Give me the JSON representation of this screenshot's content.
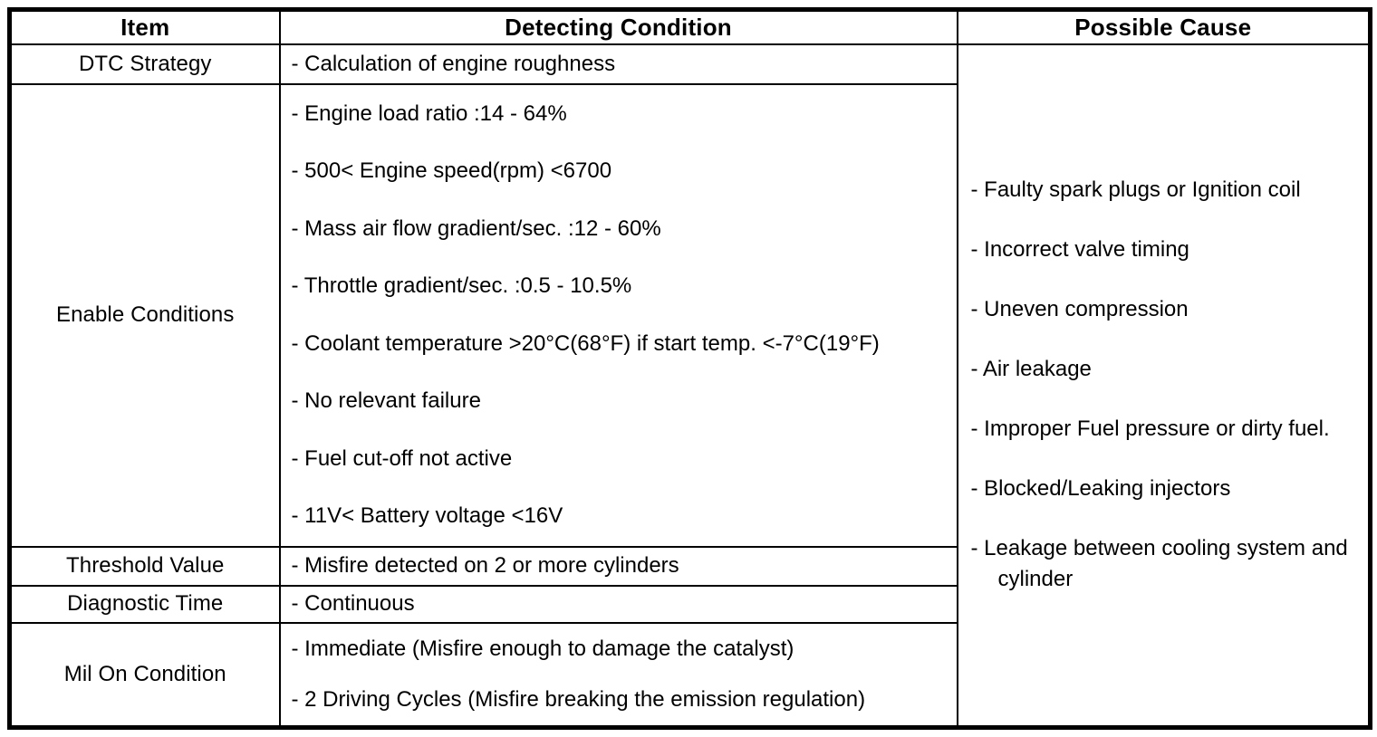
{
  "table": {
    "headers": {
      "item": "Item",
      "detecting_condition": "Detecting Condition",
      "possible_cause": "Possible Cause"
    },
    "rows": [
      {
        "item": "DTC Strategy",
        "conditions": [
          "- Calculation of engine roughness"
        ]
      },
      {
        "item": "Enable Conditions",
        "conditions": [
          "- Engine load ratio :14 - 64%",
          "- 500< Engine speed(rpm) <6700",
          "- Mass air flow gradient/sec. :12 - 60%",
          "- Throttle gradient/sec. :0.5 - 10.5%",
          "- Coolant temperature >20°C(68°F) if start temp. <-7°C(19°F)",
          "- No relevant failure",
          "- Fuel cut-off not active",
          "- 11V< Battery voltage <16V"
        ]
      },
      {
        "item": "Threshold Value",
        "conditions": [
          "- Misfire detected on 2 or more cylinders"
        ]
      },
      {
        "item": "Diagnostic Time",
        "conditions": [
          "- Continuous"
        ]
      },
      {
        "item": "Mil On Condition",
        "conditions": [
          "- Immediate (Misfire enough to damage the catalyst)",
          "- 2 Driving Cycles (Misfire breaking the emission regulation)"
        ]
      }
    ],
    "possible_causes": [
      "- Faulty spark plugs or Ignition coil",
      "- Incorrect valve timing",
      "- Uneven compression",
      "- Air leakage",
      "- Improper Fuel pressure or dirty fuel.",
      "- Blocked/Leaking injectors",
      "- Leakage between cooling system and cylinder"
    ],
    "colors": {
      "border": "#000000",
      "background": "#ffffff",
      "text": "#000000"
    }
  }
}
